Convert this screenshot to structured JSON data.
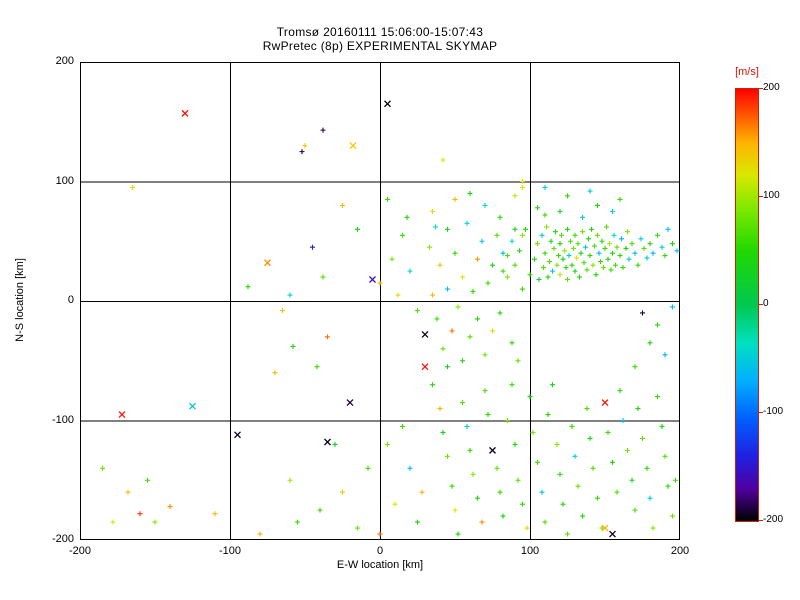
{
  "page": {
    "background": "#ffffff",
    "axis_color": "#000000",
    "annotation_color": "#dd1100"
  },
  "chart_data": {
    "type": "scatter",
    "title": "Tromsø 20160111 15:06:00-15:07:43",
    "subtitle": "RwPretec (8p) EXPERIMENTAL SKYMAP",
    "xlabel": "E-W location [km]",
    "ylabel": "N-S location [km]",
    "xlim": [
      -200,
      200
    ],
    "ylim": [
      -200,
      200
    ],
    "xticks": [
      -200,
      -100,
      0,
      100,
      200
    ],
    "yticks": [
      -200,
      -100,
      0,
      100,
      200
    ],
    "grid": true,
    "legend_position": "none",
    "colorbar": {
      "label": "[m/s]",
      "min": -200,
      "max": 200,
      "ticks": [
        200,
        100,
        0,
        -100,
        -200
      ],
      "frame_color": "#cc2200",
      "label_color": "#dd1100"
    },
    "colormap_stops": [
      [
        -200,
        "#000000"
      ],
      [
        -170,
        "#5000a0"
      ],
      [
        -140,
        "#2020e0"
      ],
      [
        -105,
        "#0060ff"
      ],
      [
        -70,
        "#00b0ff"
      ],
      [
        -35,
        "#00e0c0"
      ],
      [
        0,
        "#00c850"
      ],
      [
        50,
        "#20d800"
      ],
      [
        90,
        "#80e800"
      ],
      [
        120,
        "#d8e800"
      ],
      [
        150,
        "#ffb400"
      ],
      [
        175,
        "#ff5a00"
      ],
      [
        200,
        "#ff0000"
      ]
    ],
    "points_format": [
      "x_km",
      "y_km",
      "velocity_ms",
      "marker(optional, default +)"
    ],
    "points": [
      [
        100,
        22,
        60
      ],
      [
        103,
        35,
        40
      ],
      [
        105,
        48,
        80
      ],
      [
        106,
        18,
        30
      ],
      [
        108,
        55,
        -50
      ],
      [
        109,
        28,
        70
      ],
      [
        110,
        40,
        55
      ],
      [
        111,
        62,
        90
      ],
      [
        112,
        20,
        45
      ],
      [
        113,
        33,
        65
      ],
      [
        114,
        50,
        35
      ],
      [
        115,
        25,
        -60
      ],
      [
        116,
        44,
        75
      ],
      [
        117,
        58,
        50
      ],
      [
        118,
        30,
        85
      ],
      [
        119,
        38,
        60
      ],
      [
        120,
        22,
        110
      ],
      [
        120,
        48,
        40
      ],
      [
        121,
        55,
        70
      ],
      [
        122,
        35,
        30
      ],
      [
        123,
        42,
        95
      ],
      [
        124,
        28,
        55
      ],
      [
        125,
        60,
        45
      ],
      [
        125,
        18,
        75
      ],
      [
        126,
        38,
        -45
      ],
      [
        127,
        50,
        65
      ],
      [
        128,
        30,
        50
      ],
      [
        129,
        44,
        85
      ],
      [
        130,
        25,
        35
      ],
      [
        130,
        55,
        60
      ],
      [
        131,
        36,
        120
      ],
      [
        132,
        48,
        70
      ],
      [
        133,
        20,
        50
      ],
      [
        134,
        40,
        40
      ],
      [
        135,
        58,
        80
      ],
      [
        136,
        32,
        60
      ],
      [
        137,
        45,
        -55
      ],
      [
        138,
        26,
        70
      ],
      [
        139,
        52,
        45
      ],
      [
        140,
        38,
        55
      ],
      [
        141,
        60,
        35
      ],
      [
        142,
        30,
        90
      ],
      [
        143,
        46,
        65
      ],
      [
        144,
        22,
        50
      ],
      [
        145,
        55,
        75
      ],
      [
        146,
        40,
        -65
      ],
      [
        147,
        33,
        60
      ],
      [
        148,
        50,
        40
      ],
      [
        149,
        28,
        80
      ],
      [
        150,
        44,
        55
      ],
      [
        151,
        62,
        70
      ],
      [
        152,
        35,
        45
      ],
      [
        153,
        48,
        100
      ],
      [
        154,
        26,
        60
      ],
      [
        155,
        40,
        50
      ],
      [
        156,
        55,
        -40
      ],
      [
        157,
        30,
        65
      ],
      [
        158,
        45,
        75
      ],
      [
        160,
        38,
        55
      ],
      [
        161,
        52,
        -70
      ],
      [
        162,
        28,
        60
      ],
      [
        164,
        44,
        40
      ],
      [
        165,
        58,
        85
      ],
      [
        166,
        35,
        -50
      ],
      [
        168,
        48,
        65
      ],
      [
        170,
        40,
        -60
      ],
      [
        172,
        30,
        55
      ],
      [
        174,
        52,
        -45
      ],
      [
        176,
        44,
        70
      ],
      [
        178,
        36,
        -55
      ],
      [
        180,
        48,
        50
      ],
      [
        182,
        40,
        -65
      ],
      [
        185,
        55,
        60
      ],
      [
        188,
        45,
        -50
      ],
      [
        190,
        38,
        55
      ],
      [
        192,
        60,
        -60
      ],
      [
        195,
        48,
        45
      ],
      [
        198,
        42,
        -55
      ],
      [
        120,
        75,
        30
      ],
      [
        135,
        70,
        -45
      ],
      [
        145,
        80,
        50
      ],
      [
        110,
        72,
        60
      ],
      [
        155,
        75,
        -50
      ],
      [
        97,
        60,
        45
      ],
      [
        93,
        42,
        55
      ],
      [
        90,
        30,
        65
      ],
      [
        88,
        50,
        -40
      ],
      [
        85,
        38,
        70
      ],
      [
        82,
        25,
        55
      ],
      [
        95,
        55,
        90
      ],
      [
        35,
        5,
        150
      ],
      [
        38,
        -15,
        60
      ],
      [
        40,
        30,
        140
      ],
      [
        42,
        -40,
        80
      ],
      [
        45,
        10,
        -60
      ],
      [
        45,
        60,
        35
      ],
      [
        48,
        -25,
        170
      ],
      [
        50,
        40,
        55
      ],
      [
        52,
        -5,
        90
      ],
      [
        55,
        20,
        120
      ],
      [
        55,
        -50,
        40
      ],
      [
        58,
        65,
        -45
      ],
      [
        60,
        -30,
        70
      ],
      [
        62,
        8,
        55
      ],
      [
        65,
        35,
        160
      ],
      [
        65,
        -15,
        45
      ],
      [
        68,
        50,
        -55
      ],
      [
        70,
        -45,
        85
      ],
      [
        72,
        15,
        60
      ],
      [
        75,
        30,
        40
      ],
      [
        75,
        -25,
        130
      ],
      [
        78,
        55,
        70
      ],
      [
        80,
        -10,
        50
      ],
      [
        82,
        40,
        -60
      ],
      [
        85,
        20,
        90
      ],
      [
        88,
        -35,
        55
      ],
      [
        90,
        60,
        35
      ],
      [
        92,
        -50,
        75
      ],
      [
        95,
        10,
        60
      ],
      [
        35,
        75,
        130
      ],
      [
        50,
        85,
        150
      ],
      [
        60,
        90,
        45
      ],
      [
        70,
        80,
        -40
      ],
      [
        80,
        70,
        55
      ],
      [
        90,
        88,
        110
      ],
      [
        95,
        95,
        120
      ],
      [
        45,
        -55,
        25
      ],
      [
        33,
        45,
        95
      ],
      [
        37,
        62,
        -35
      ],
      [
        110,
        95,
        -45
      ],
      [
        125,
        88,
        55
      ],
      [
        140,
        92,
        -50
      ],
      [
        160,
        85,
        60
      ],
      [
        105,
        78,
        45
      ],
      [
        42,
        118,
        115
      ],
      [
        95,
        100,
        120
      ],
      [
        35,
        -70,
        55
      ],
      [
        40,
        -90,
        150
      ],
      [
        42,
        -110,
        35
      ],
      [
        45,
        -130,
        80
      ],
      [
        48,
        -155,
        60
      ],
      [
        50,
        -175,
        120
      ],
      [
        52,
        -195,
        45
      ],
      [
        55,
        -85,
        70
      ],
      [
        58,
        -105,
        -50
      ],
      [
        60,
        -125,
        55
      ],
      [
        62,
        -145,
        90
      ],
      [
        65,
        -165,
        40
      ],
      [
        68,
        -185,
        160
      ],
      [
        70,
        -75,
        65
      ],
      [
        72,
        -95,
        50
      ],
      [
        75,
        -125,
        -195,
        "x"
      ],
      [
        78,
        -140,
        75
      ],
      [
        80,
        -160,
        55
      ],
      [
        82,
        -180,
        35
      ],
      [
        85,
        -100,
        80
      ],
      [
        88,
        -70,
        60
      ],
      [
        90,
        -120,
        45
      ],
      [
        92,
        -150,
        70
      ],
      [
        95,
        -170,
        55
      ],
      [
        98,
        -190,
        130
      ],
      [
        100,
        -80,
        40
      ],
      [
        102,
        -110,
        85
      ],
      [
        105,
        -135,
        60
      ],
      [
        108,
        -160,
        -55
      ],
      [
        110,
        -185,
        70
      ],
      [
        112,
        -95,
        50
      ],
      [
        115,
        -70,
        35
      ],
      [
        118,
        -120,
        90
      ],
      [
        120,
        -145,
        55
      ],
      [
        122,
        -170,
        45
      ],
      [
        125,
        -195,
        75
      ],
      [
        128,
        -105,
        60
      ],
      [
        130,
        -130,
        -45
      ],
      [
        132,
        -155,
        80
      ],
      [
        135,
        -180,
        50
      ],
      [
        138,
        -90,
        65
      ],
      [
        140,
        -115,
        40
      ],
      [
        142,
        -140,
        70
      ],
      [
        145,
        -165,
        55
      ],
      [
        148,
        -190,
        85
      ],
      [
        150,
        -85,
        195,
        "x"
      ],
      [
        152,
        -110,
        60
      ],
      [
        155,
        -135,
        45
      ],
      [
        155,
        -195,
        -195,
        "x"
      ],
      [
        150,
        -190,
        150,
        "x"
      ],
      [
        158,
        -160,
        70
      ],
      [
        160,
        -75,
        55
      ],
      [
        162,
        -100,
        -60
      ],
      [
        165,
        -125,
        80
      ],
      [
        168,
        -150,
        40
      ],
      [
        170,
        -175,
        65
      ],
      [
        172,
        -90,
        50
      ],
      [
        175,
        -115,
        75
      ],
      [
        178,
        -140,
        55
      ],
      [
        180,
        -165,
        -50
      ],
      [
        182,
        -190,
        90
      ],
      [
        185,
        -80,
        60
      ],
      [
        188,
        -105,
        45
      ],
      [
        190,
        -130,
        70
      ],
      [
        192,
        -155,
        55
      ],
      [
        195,
        -180,
        80
      ],
      [
        197,
        -150,
        60
      ],
      [
        190,
        -45,
        -70
      ],
      [
        185,
        -20,
        55
      ],
      [
        195,
        -5,
        -60
      ],
      [
        180,
        -35,
        45
      ],
      [
        175,
        -10,
        -190
      ],
      [
        170,
        -55,
        60
      ],
      [
        0,
        15,
        150
      ],
      [
        -5,
        18,
        -150,
        "x"
      ],
      [
        8,
        35,
        85
      ],
      [
        15,
        55,
        60
      ],
      [
        20,
        25,
        -45
      ],
      [
        12,
        5,
        130
      ],
      [
        25,
        -8,
        70
      ],
      [
        30,
        -28,
        -195,
        "x"
      ],
      [
        30,
        -55,
        195,
        "x"
      ],
      [
        18,
        70,
        45
      ],
      [
        5,
        85,
        60
      ],
      [
        -15,
        60,
        35
      ],
      [
        -25,
        80,
        150
      ],
      [
        5,
        165,
        -200,
        "x"
      ],
      [
        -38,
        143,
        -190
      ],
      [
        -18,
        130,
        140,
        "x"
      ],
      [
        -8,
        -140,
        65
      ],
      [
        0,
        -195,
        170
      ],
      [
        10,
        -170,
        120
      ],
      [
        15,
        -105,
        60
      ],
      [
        20,
        -140,
        -60
      ],
      [
        25,
        -185,
        45
      ],
      [
        5,
        -120,
        90
      ],
      [
        28,
        -160,
        150
      ],
      [
        -20,
        -85,
        -190,
        "x"
      ],
      [
        -35,
        -118,
        -195,
        "x"
      ],
      [
        -30,
        -120,
        30
      ],
      [
        -25,
        -160,
        140
      ],
      [
        -15,
        -190,
        80
      ],
      [
        -40,
        -175,
        55
      ],
      [
        -75,
        32,
        160,
        "x"
      ],
      [
        -88,
        12,
        55
      ],
      [
        -60,
        5,
        -45
      ],
      [
        -65,
        -8,
        140
      ],
      [
        -45,
        45,
        -150
      ],
      [
        -38,
        20,
        70
      ],
      [
        -35,
        -30,
        170
      ],
      [
        -42,
        -55,
        60
      ],
      [
        -58,
        -38,
        45
      ],
      [
        -70,
        -60,
        150
      ],
      [
        -52,
        125,
        -190
      ],
      [
        -50,
        130,
        140
      ],
      [
        -165,
        95,
        118
      ],
      [
        -130,
        157,
        195,
        "x"
      ],
      [
        -172,
        -95,
        195,
        "x"
      ],
      [
        -125,
        -88,
        -60,
        "x"
      ],
      [
        -95,
        -112,
        -195,
        "x"
      ],
      [
        -160,
        -178,
        185
      ],
      [
        -150,
        -185,
        90
      ],
      [
        -140,
        -172,
        160
      ],
      [
        -168,
        -160,
        145
      ],
      [
        -155,
        -150,
        60
      ],
      [
        -178,
        -185,
        120
      ],
      [
        -110,
        -178,
        150
      ],
      [
        -185,
        -140,
        80
      ],
      [
        -60,
        -150,
        100
      ],
      [
        -55,
        -185,
        60
      ],
      [
        -80,
        -195,
        150
      ]
    ]
  }
}
